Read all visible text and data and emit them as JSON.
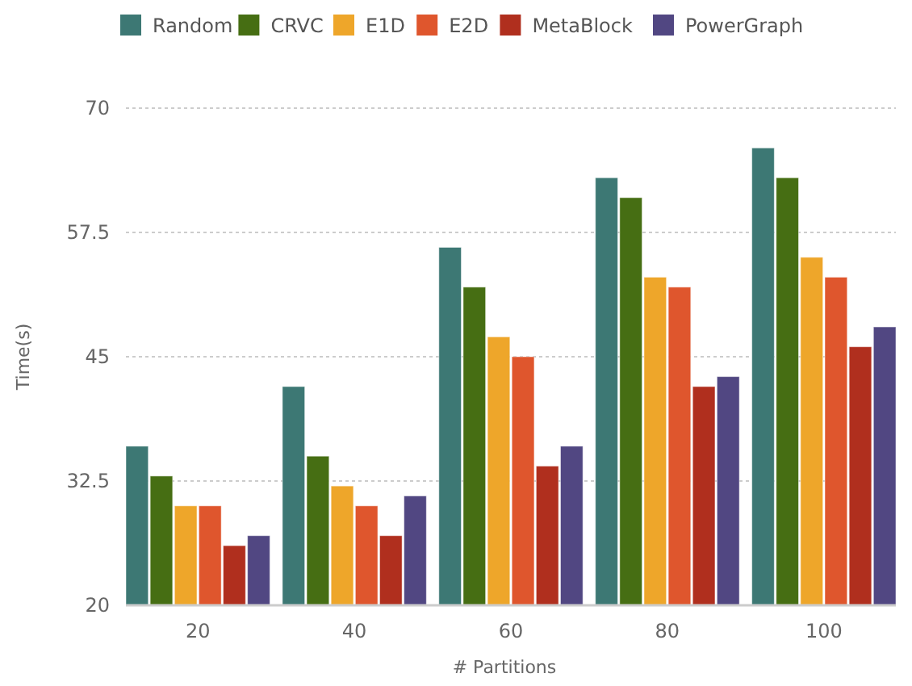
{
  "chart_data": {
    "type": "bar",
    "xlabel": "# Partitions",
    "ylabel": "Time(s)",
    "categories": [
      "20",
      "40",
      "60",
      "80",
      "100"
    ],
    "series": [
      {
        "name": "Random",
        "color": "#3d7874",
        "values": [
          36,
          42,
          56,
          63,
          66
        ]
      },
      {
        "name": "CRVC",
        "color": "#466e13",
        "values": [
          33,
          35,
          52,
          61,
          63
        ]
      },
      {
        "name": "E1D",
        "color": "#eea62a",
        "values": [
          30,
          32,
          47,
          53,
          55
        ]
      },
      {
        "name": "E2D",
        "color": "#df562d",
        "values": [
          30,
          30,
          45,
          52,
          53
        ]
      },
      {
        "name": "MetaBlock",
        "color": "#b02f1e",
        "values": [
          26,
          27,
          34,
          42,
          46
        ]
      },
      {
        "name": "PowerGraph",
        "color": "#514782",
        "values": [
          27,
          31,
          36,
          43,
          48
        ]
      }
    ],
    "ylim": [
      20,
      70
    ],
    "yticks": [
      20,
      32.5,
      45,
      57.5,
      70
    ],
    "grid": "y",
    "legend": "top"
  }
}
